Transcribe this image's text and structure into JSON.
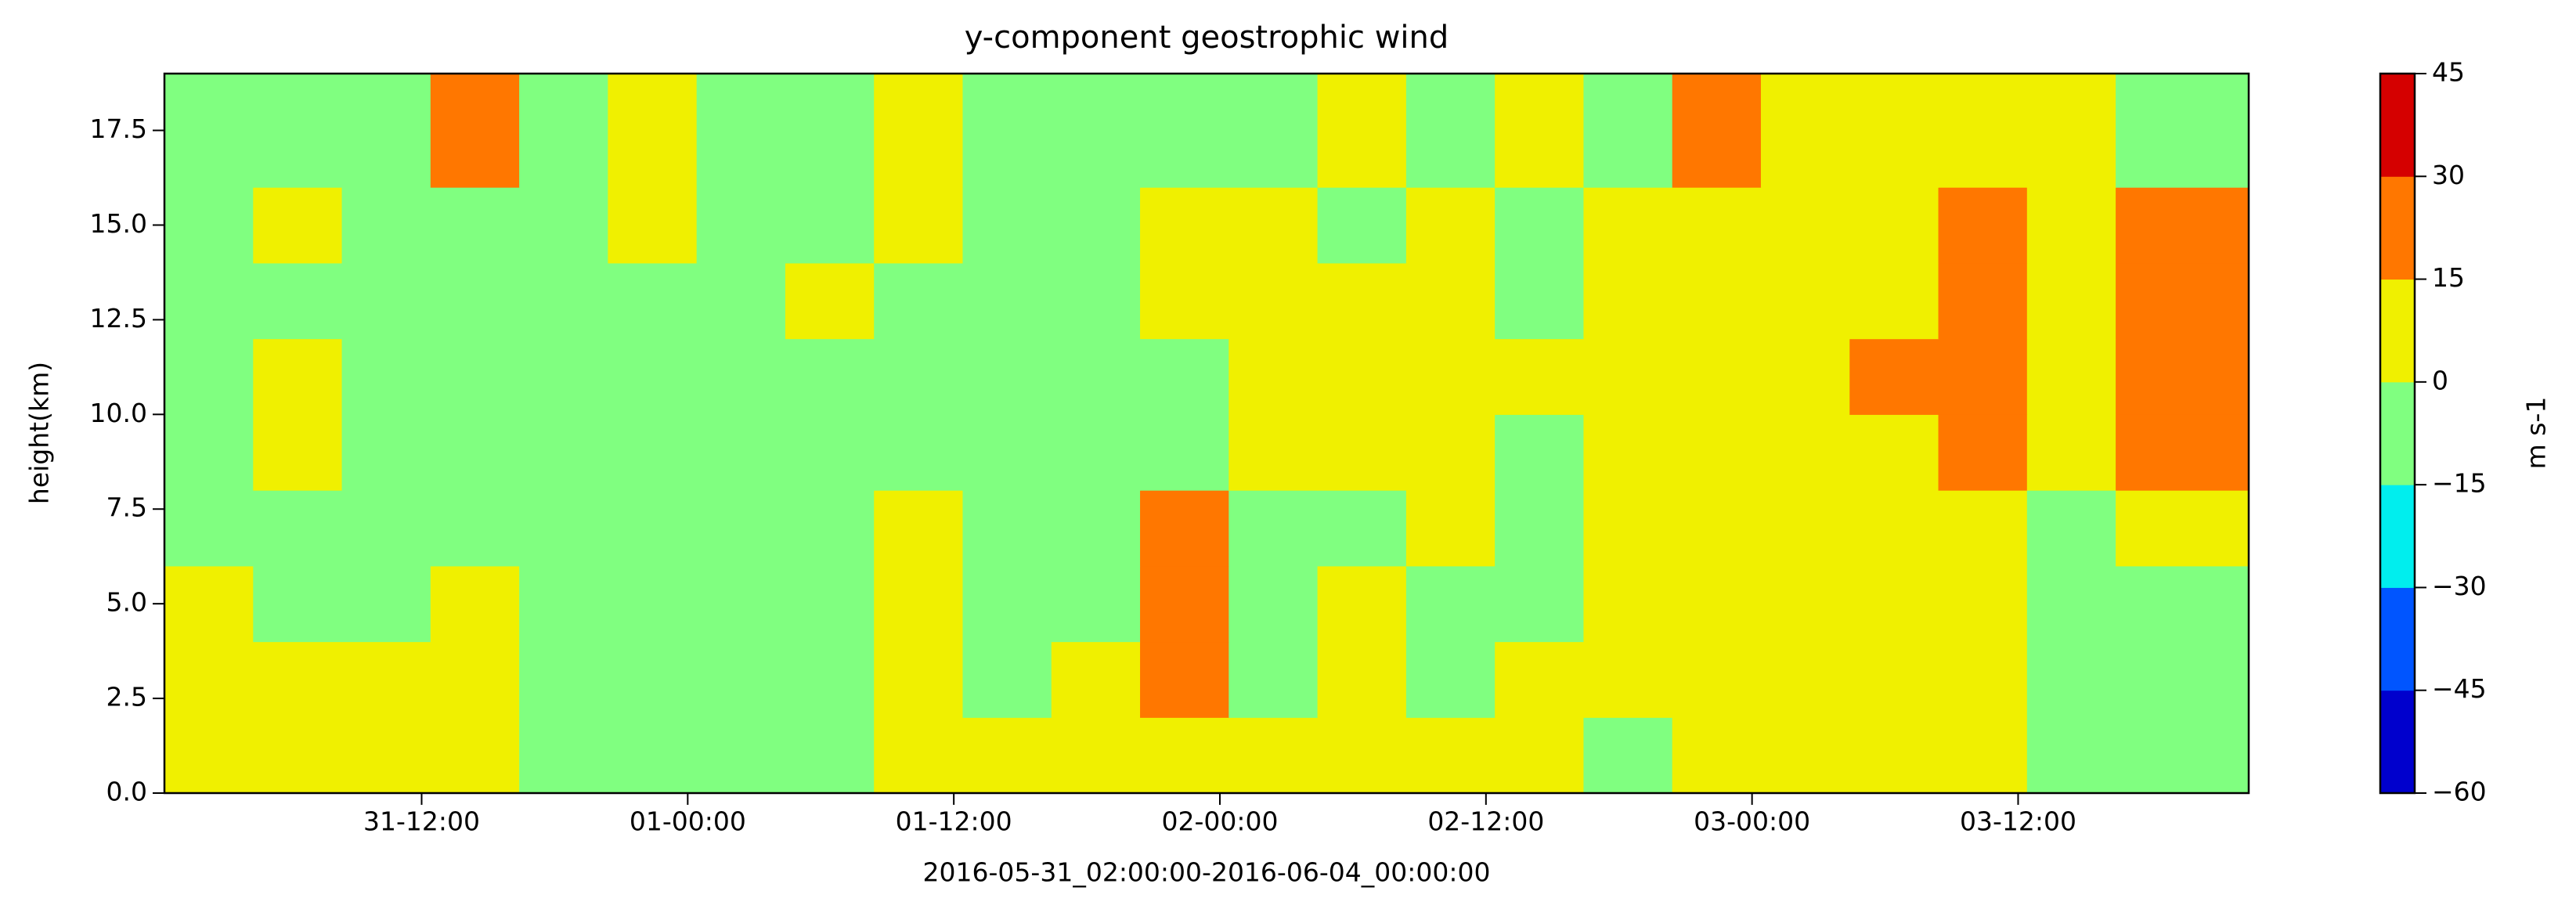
{
  "chart_data": {
    "type": "contourf",
    "title": "y-component geostrophic wind",
    "xlabel": "2016-05-31_02:00:00-2016-06-04_00:00:00",
    "ylabel": "height(km)",
    "x": [
      2.4,
      6.4,
      10.4,
      14.4,
      18.4,
      22.4,
      26.4,
      30.4,
      34.4,
      38.4,
      42.4,
      46.4,
      50.4,
      54.4,
      58.4,
      62.4,
      66.4,
      70.4,
      74.4,
      78.4,
      82.4,
      86.4,
      90.4
    ],
    "y": [
      1,
      3,
      5,
      7,
      9,
      11,
      13,
      15,
      17
    ],
    "z": [
      [
        6,
        5,
        7,
        8,
        -5,
        -6,
        -4,
        -3,
        5,
        6,
        8,
        4,
        7,
        6,
        5,
        7,
        -3,
        6,
        8,
        5,
        7,
        -4,
        -5
      ],
      [
        5,
        6,
        6,
        7,
        -6,
        -7,
        -5,
        -4,
        4,
        -3,
        6,
        18,
        -3,
        5,
        -4,
        6,
        5,
        7,
        6,
        8,
        5,
        -5,
        -6
      ],
      [
        4,
        -4,
        -5,
        3,
        -8,
        -5,
        -7,
        -6,
        5,
        -6,
        -3,
        20,
        -4,
        4,
        -5,
        -3,
        5,
        6,
        4,
        7,
        6,
        -6,
        -7
      ],
      [
        -4,
        -6,
        -5,
        -3,
        -12,
        -6,
        -7,
        -5,
        4,
        -5,
        -6,
        22,
        -4,
        -3,
        5,
        -4,
        6,
        8,
        7,
        9,
        12,
        -5,
        6
      ],
      [
        -5,
        4,
        -6,
        -14,
        -7,
        -6,
        -5,
        -7,
        -3,
        -6,
        -8,
        -4,
        5,
        6,
        4,
        -3,
        6,
        7,
        8,
        10,
        20,
        9,
        22
      ],
      [
        -6,
        5,
        -7,
        -8,
        -6,
        -5,
        -7,
        -6,
        -4,
        -5,
        -9,
        -5,
        5,
        7,
        6,
        4,
        5,
        6,
        8,
        18,
        22,
        9,
        28
      ],
      [
        -5,
        -4,
        -6,
        -7,
        -5,
        -6,
        -4,
        3,
        -5,
        -6,
        -7,
        3,
        6,
        5,
        4,
        -3,
        5,
        7,
        6,
        8,
        21,
        10,
        23
      ],
      [
        -5,
        5,
        -6,
        -7,
        -4,
        4,
        -5,
        -6,
        3,
        -5,
        -8,
        3,
        5,
        -3,
        6,
        -4,
        4,
        6,
        7,
        5,
        20,
        8,
        24
      ],
      [
        -4,
        -5,
        -3,
        25,
        -6,
        6,
        -5,
        -4,
        4,
        -6,
        -5,
        -4,
        -3,
        5,
        -4,
        5,
        -3,
        18,
        6,
        7,
        8,
        9,
        -5
      ]
    ],
    "xlim": [
      0.4,
      94.4
    ],
    "xticks": [
      {
        "value": 12,
        "label": "31-12:00"
      },
      {
        "value": 24,
        "label": "01-00:00"
      },
      {
        "value": 36,
        "label": "01-12:00"
      },
      {
        "value": 48,
        "label": "02-00:00"
      },
      {
        "value": 60,
        "label": "02-12:00"
      },
      {
        "value": 72,
        "label": "03-00:00"
      },
      {
        "value": 84,
        "label": "03-12:00"
      }
    ],
    "ylim": [
      0,
      19
    ],
    "yticks": [
      {
        "value": 0,
        "label": "0.0"
      },
      2.5,
      {
        "value": 5,
        "label": "5.0"
      },
      7.5,
      {
        "value": 10,
        "label": "10.0"
      },
      12.5,
      {
        "value": 15,
        "label": "15.0"
      },
      17.5
    ],
    "colorbar": {
      "label": "m s-1",
      "ticks": [
        {
          "value": -60,
          "label": "−60"
        },
        {
          "value": -45,
          "label": "−45"
        },
        {
          "value": -30,
          "label": "−30"
        },
        {
          "value": -15,
          "label": "−15"
        },
        0,
        15,
        30,
        45
      ],
      "colors": [
        "#0000cd",
        "#0055ff",
        "#00eeee",
        "#80ff80",
        "#f0f000",
        "#ff7700",
        "#d50000"
      ]
    }
  }
}
